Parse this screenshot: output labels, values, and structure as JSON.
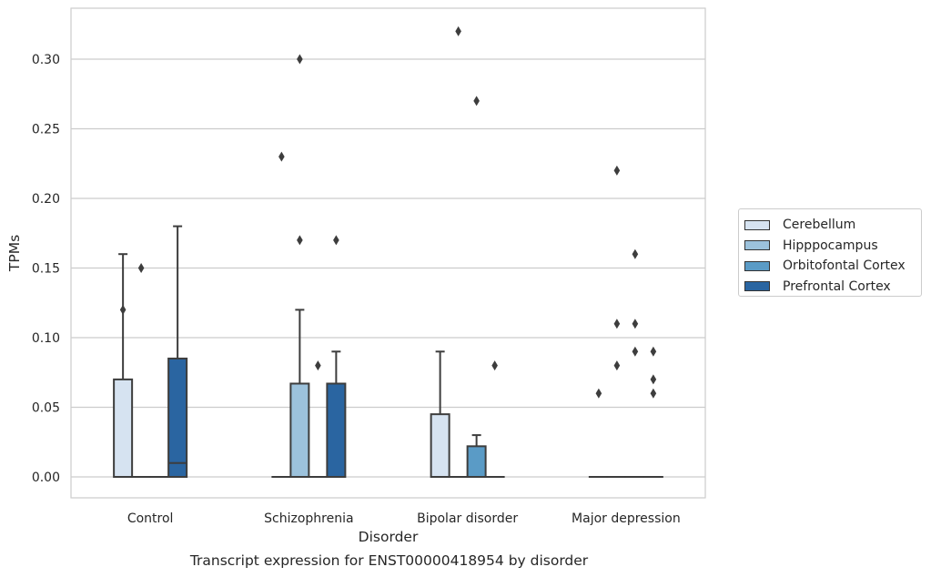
{
  "chart_data": {
    "type": "box",
    "title": "",
    "caption": "Transcript expression for ENST00000418954 by disorder",
    "xlabel": "Disorder",
    "ylabel": "TPMs",
    "ylim": [
      -0.016,
      0.338
    ],
    "yticks": [
      0.0,
      0.05,
      0.1,
      0.15,
      0.2,
      0.25,
      0.3
    ],
    "ytick_labels": [
      "0.00",
      "0.05",
      "0.10",
      "0.15",
      "0.20",
      "0.25",
      "0.30"
    ],
    "categories": [
      "Control",
      "Schizophrenia",
      "Bipolar disorder",
      "Major depression"
    ],
    "grid": "horizontal",
    "legend_position": "right",
    "series": [
      {
        "name": "Cerebellum",
        "color": "#d6e3f1",
        "boxes": [
          {
            "q1": 0.0,
            "median": 0.0,
            "q3": 0.07,
            "whisker_low": 0.0,
            "whisker_high": 0.16,
            "outliers": [
              0.12
            ]
          },
          {
            "q1": 0.0,
            "median": 0.0,
            "q3": 0.0,
            "whisker_low": 0.0,
            "whisker_high": 0.0,
            "outliers": [
              0.23
            ]
          },
          {
            "q1": 0.0,
            "median": 0.0,
            "q3": 0.045,
            "whisker_low": 0.0,
            "whisker_high": 0.09,
            "outliers": []
          },
          {
            "q1": 0.0,
            "median": 0.0,
            "q3": 0.0,
            "whisker_low": 0.0,
            "whisker_high": 0.0,
            "outliers": [
              0.06
            ]
          }
        ]
      },
      {
        "name": "Hipppocampus",
        "color": "#9cc2dc",
        "boxes": [
          {
            "q1": 0.0,
            "median": 0.0,
            "q3": 0.0,
            "whisker_low": 0.0,
            "whisker_high": 0.0,
            "outliers": [
              0.15
            ]
          },
          {
            "q1": 0.0,
            "median": 0.0,
            "q3": 0.067,
            "whisker_low": 0.0,
            "whisker_high": 0.12,
            "outliers": [
              0.17,
              0.3
            ]
          },
          {
            "q1": 0.0,
            "median": 0.0,
            "q3": 0.0,
            "whisker_low": 0.0,
            "whisker_high": 0.0,
            "outliers": [
              0.32
            ]
          },
          {
            "q1": 0.0,
            "median": 0.0,
            "q3": 0.0,
            "whisker_low": 0.0,
            "whisker_high": 0.0,
            "outliers": [
              0.08,
              0.11,
              0.22
            ]
          }
        ]
      },
      {
        "name": "Orbitofontal Cortex",
        "color": "#5a9bc6",
        "boxes": [
          {
            "q1": 0.0,
            "median": 0.0,
            "q3": 0.0,
            "whisker_low": 0.0,
            "whisker_high": 0.0,
            "outliers": []
          },
          {
            "q1": 0.0,
            "median": 0.0,
            "q3": 0.0,
            "whisker_low": 0.0,
            "whisker_high": 0.0,
            "outliers": [
              0.08
            ]
          },
          {
            "q1": 0.0,
            "median": 0.0,
            "q3": 0.022,
            "whisker_low": 0.0,
            "whisker_high": 0.03,
            "outliers": [
              0.27
            ]
          },
          {
            "q1": 0.0,
            "median": 0.0,
            "q3": 0.0,
            "whisker_low": 0.0,
            "whisker_high": 0.0,
            "outliers": [
              0.09,
              0.11,
              0.16
            ]
          }
        ]
      },
      {
        "name": "Prefrontal Cortex",
        "color": "#2a65a1",
        "boxes": [
          {
            "q1": 0.0,
            "median": 0.01,
            "q3": 0.085,
            "whisker_low": 0.0,
            "whisker_high": 0.18,
            "outliers": []
          },
          {
            "q1": 0.0,
            "median": 0.0,
            "q3": 0.067,
            "whisker_low": 0.0,
            "whisker_high": 0.09,
            "outliers": [
              0.17
            ]
          },
          {
            "q1": 0.0,
            "median": 0.0,
            "q3": 0.0,
            "whisker_low": 0.0,
            "whisker_high": 0.0,
            "outliers": [
              0.08
            ]
          },
          {
            "q1": 0.0,
            "median": 0.0,
            "q3": 0.0,
            "whisker_low": 0.0,
            "whisker_high": 0.0,
            "outliers": [
              0.06,
              0.07,
              0.09
            ]
          }
        ]
      }
    ]
  }
}
